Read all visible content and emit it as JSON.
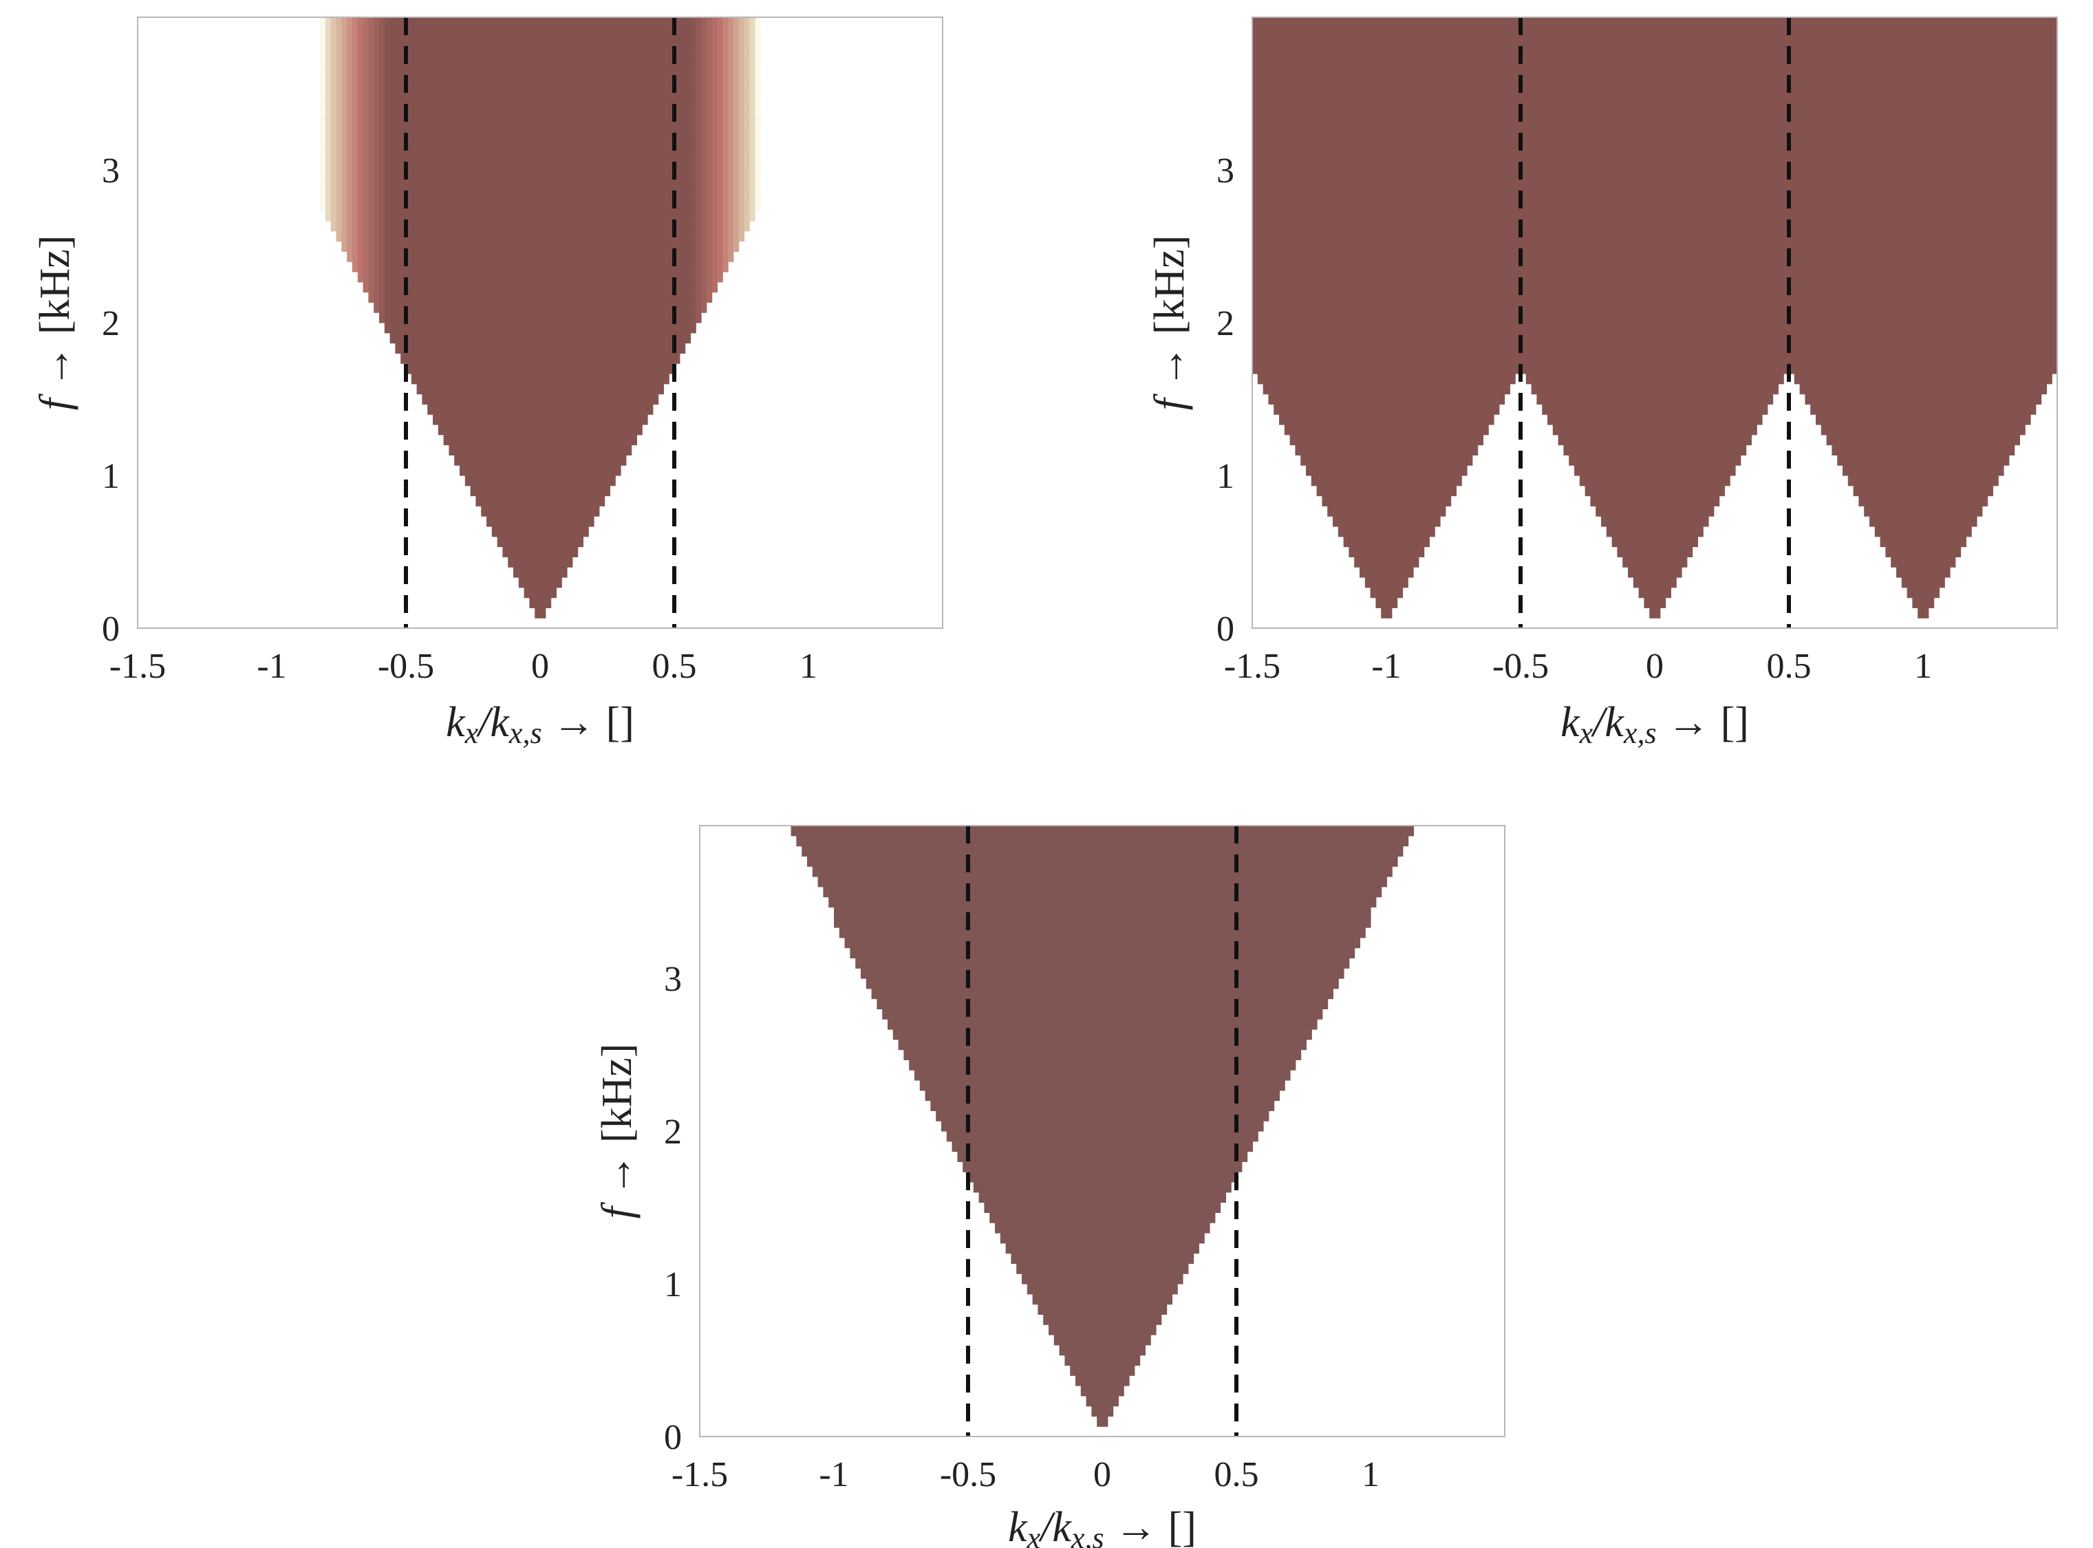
{
  "chart_data": [
    {
      "type": "heatmap",
      "panel": "top-left",
      "title": "",
      "xlabel_parts": [
        "k",
        "x",
        "/k",
        "x,s",
        " → []"
      ],
      "ylabel_parts": [
        "f",
        " → [kHz]"
      ],
      "xlim": [
        -1.5,
        1.5
      ],
      "ylim": [
        0,
        4
      ],
      "xticks": [
        -1.5,
        -1,
        -0.5,
        0,
        0.5,
        1
      ],
      "xtick_labels": [
        "-1.5",
        "-1",
        "-0.5",
        "0",
        "0.5",
        "1"
      ],
      "yticks": [
        0,
        1,
        2,
        3
      ],
      "ytick_labels": [
        "0",
        "1",
        "2",
        "3"
      ],
      "vlines": [
        -0.5,
        0.5
      ],
      "cone_apexes": [
        0
      ],
      "cone_slope_khz_per_unit": 3.4,
      "band_limit": 0.5,
      "spread_above_limit": 0.32,
      "palette": {
        "dark": "#845350",
        "mid": "#c0766f",
        "light": "#eef0cc"
      }
    },
    {
      "type": "heatmap",
      "panel": "top-right",
      "title": "",
      "xlabel_parts": [
        "k",
        "x",
        "/k",
        "x,s",
        " → []"
      ],
      "ylabel_parts": [
        "f",
        " → [kHz]"
      ],
      "xlim": [
        -1.5,
        1.5
      ],
      "ylim": [
        0,
        4
      ],
      "xticks": [
        -1.5,
        -1,
        -0.5,
        0,
        0.5,
        1
      ],
      "xtick_labels": [
        "-1.5",
        "-1",
        "-0.5",
        "0",
        "0.5",
        "1"
      ],
      "yticks": [
        0,
        1,
        2,
        3
      ],
      "ytick_labels": [
        "0",
        "1",
        "2",
        "3"
      ],
      "vlines": [
        -0.5,
        0.5
      ],
      "cone_apexes": [
        -1,
        0,
        1
      ],
      "cone_slope_khz_per_unit": 3.4,
      "band_limit": 0.5,
      "spread_above_limit": 0.0,
      "palette": {
        "dark": "#845350",
        "mid": "#c0766f",
        "light": "#eef0cc"
      }
    },
    {
      "type": "heatmap",
      "panel": "bottom-center",
      "title": "",
      "xlabel_parts": [
        "k",
        "x",
        "/k",
        "x,s",
        " → []"
      ],
      "ylabel_parts": [
        "f",
        " → [kHz]"
      ],
      "xlim": [
        -1.5,
        1.5
      ],
      "ylim": [
        0,
        4
      ],
      "xticks": [
        -1.5,
        -1,
        -0.5,
        0,
        0.5,
        1
      ],
      "xtick_labels": [
        "-1.5",
        "-1",
        "-0.5",
        "0",
        "0.5",
        "1"
      ],
      "yticks": [
        0,
        1,
        2,
        3
      ],
      "ytick_labels": [
        "0",
        "1",
        "2",
        "3"
      ],
      "vlines": [
        -0.5,
        0.5
      ],
      "cone_apexes": [
        0
      ],
      "cone_slope_khz_per_unit": 3.4,
      "band_limit": 1.2,
      "spread_above_limit": 0.14,
      "palette": {
        "dark": "#7f5654",
        "mid": "#b8706e",
        "light": "#eef0cc"
      }
    }
  ]
}
